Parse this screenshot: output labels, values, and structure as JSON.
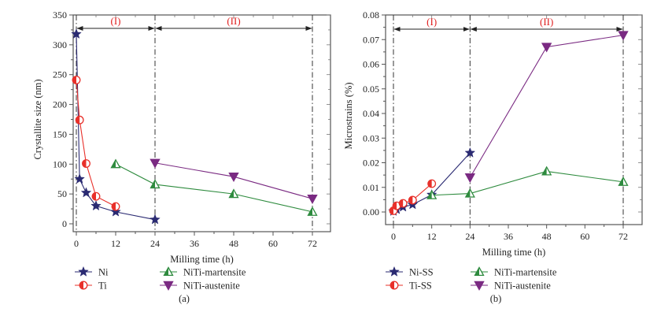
{
  "chart_data": [
    {
      "type": "line",
      "panel_label": "(a)",
      "xlabel": "Milling time (h)",
      "ylabel": "Crystallite size (nm)",
      "xlim": [
        -1,
        77
      ],
      "ylim": [
        -12,
        350
      ],
      "xticks": [
        0,
        12,
        24,
        36,
        48,
        60,
        72
      ],
      "yticks": [
        0,
        50,
        100,
        150,
        200,
        250,
        300,
        350
      ],
      "xtick_labels": [
        "0",
        "12",
        "24",
        "36",
        "48",
        "60",
        "72"
      ],
      "ytick_labels": [
        "0",
        "50",
        "100",
        "150",
        "200",
        "250",
        "300",
        "350"
      ],
      "grid": false,
      "region_lines_x": [
        0,
        24,
        72
      ],
      "regions": [
        {
          "label": "(I)",
          "from": 0,
          "to": 24
        },
        {
          "label": "(II)",
          "from": 24,
          "to": 72
        }
      ],
      "legend_position": "bottom",
      "series": [
        {
          "name": "Ni",
          "marker": "star",
          "color": "#2a2a72",
          "x": [
            0,
            1,
            3,
            6,
            12,
            24
          ],
          "y": [
            318,
            75,
            52,
            30,
            20,
            7
          ]
        },
        {
          "name": "Ti",
          "marker": "half-circle",
          "color": "#e8302a",
          "x": [
            0,
            1,
            3,
            6,
            12
          ],
          "y": [
            241,
            174,
            101,
            46,
            29
          ]
        },
        {
          "name": "NiTi-martensite",
          "marker": "triangle-up",
          "color": "#2e8b3e",
          "x": [
            12,
            24,
            48,
            72
          ],
          "y": [
            100,
            66,
            50,
            20
          ]
        },
        {
          "name": "NiTi-austenite",
          "marker": "triangle-down",
          "color": "#7a2a82",
          "x": [
            24,
            48,
            72
          ],
          "y": [
            102,
            79,
            42
          ]
        }
      ]
    },
    {
      "type": "line",
      "panel_label": "(b)",
      "xlabel": "Milling time (h)",
      "ylabel": "Microstrains (%)",
      "xlim": [
        -2,
        78
      ],
      "ylim": [
        -0.005,
        0.08
      ],
      "xticks": [
        0,
        12,
        24,
        36,
        48,
        60,
        72
      ],
      "yticks": [
        0.0,
        0.01,
        0.02,
        0.03,
        0.04,
        0.05,
        0.06,
        0.07,
        0.08
      ],
      "xtick_labels": [
        "0",
        "12",
        "24",
        "36",
        "48",
        "60",
        "72"
      ],
      "ytick_labels": [
        "0.00",
        "0.01",
        "0.02",
        "0.03",
        "0.04",
        "0.05",
        "0.06",
        "0.07",
        "0.08"
      ],
      "grid": false,
      "region_lines_x": [
        0,
        24,
        72
      ],
      "regions": [
        {
          "label": "(I)",
          "from": 0,
          "to": 24
        },
        {
          "label": "(II)",
          "from": 24,
          "to": 72
        }
      ],
      "legend_position": "bottom",
      "series": [
        {
          "name": "Ni-SS",
          "marker": "star",
          "color": "#2a2a72",
          "x": [
            0,
            1,
            3,
            6,
            12,
            24
          ],
          "y": [
            0.0003,
            0.001,
            0.002,
            0.003,
            0.007,
            0.024
          ]
        },
        {
          "name": "Ti-SS",
          "marker": "half-circle",
          "color": "#e8302a",
          "x": [
            0,
            1,
            3,
            6,
            12
          ],
          "y": [
            0.0005,
            0.0025,
            0.0035,
            0.0048,
            0.0115
          ]
        },
        {
          "name": "NiTi-martensite",
          "marker": "triangle-up",
          "color": "#2e8b3e",
          "x": [
            12,
            24,
            48,
            72
          ],
          "y": [
            0.0068,
            0.0075,
            0.0165,
            0.0122
          ]
        },
        {
          "name": "NiTi-austenite",
          "marker": "triangle-down",
          "color": "#7a2a82",
          "x": [
            24,
            48,
            72
          ],
          "y": [
            0.014,
            0.067,
            0.0718
          ]
        }
      ]
    }
  ]
}
